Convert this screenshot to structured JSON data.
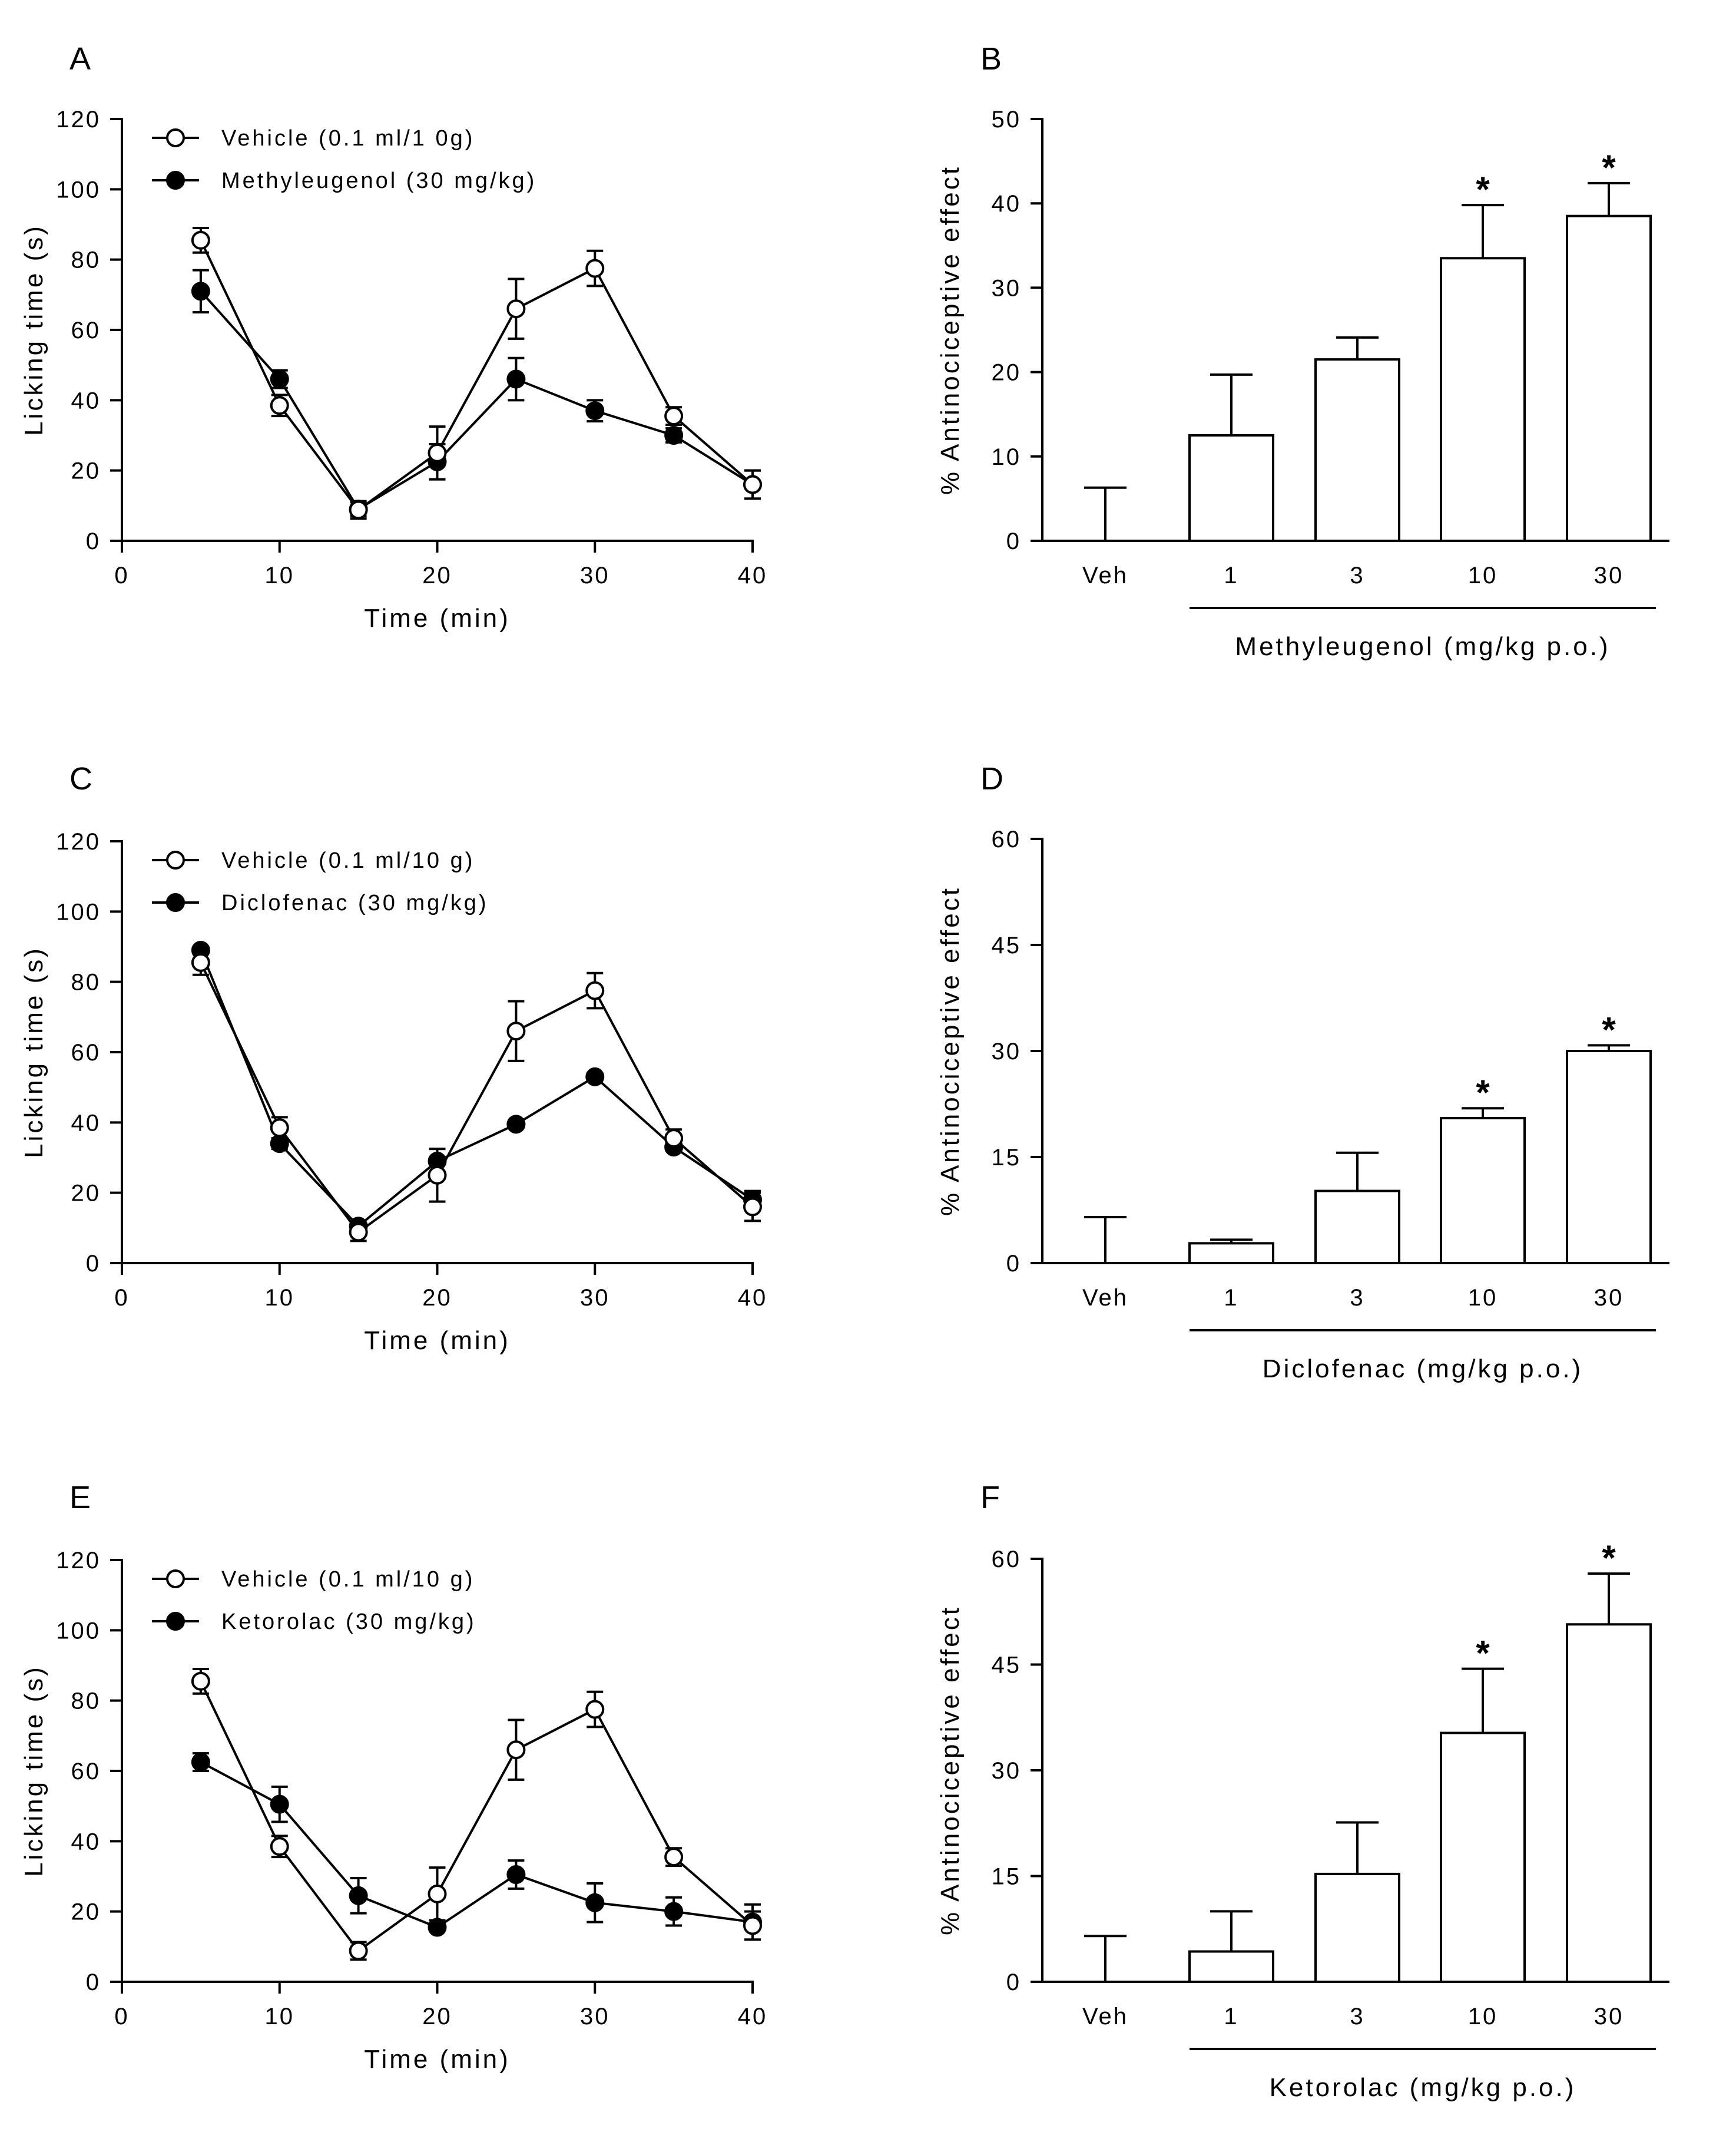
{
  "chart_data": [
    {
      "panel": "A",
      "type": "line",
      "xlabel": "Time  (min)",
      "ylabel": "Licking time (s)",
      "xlim": [
        0,
        40
      ],
      "ylim": [
        0,
        120
      ],
      "xticks": [
        0,
        10,
        20,
        30,
        40
      ],
      "yticks": [
        0,
        20,
        40,
        60,
        80,
        100,
        120
      ],
      "x": [
        5,
        10,
        15,
        20,
        25,
        30,
        35,
        40
      ],
      "series": [
        {
          "name": "Vehicle (0.1 ml/1 0g)",
          "marker": "open-circle",
          "values": [
            85.5,
            38.5,
            8.8,
            25,
            66,
            77.5,
            35.5,
            16
          ],
          "errors": [
            3.5,
            3,
            2.5,
            7.5,
            8.5,
            5,
            2.5,
            4
          ]
        },
        {
          "name": "Methyleugenol (30 mg/kg)",
          "marker": "filled-circle",
          "values": [
            71,
            46,
            9,
            22.5,
            46,
            37,
            30,
            16
          ],
          "errors": [
            6,
            2.5,
            2,
            5,
            6,
            3,
            2,
            4
          ]
        }
      ]
    },
    {
      "panel": "B",
      "type": "bar",
      "ylabel": "% Antinociceptive effect",
      "xlabel": "Methyleugenol (mg/kg p.o.)",
      "ylim": [
        0,
        50
      ],
      "yticks": [
        0,
        10,
        20,
        30,
        40,
        50
      ],
      "categories": [
        "Veh",
        "1",
        "3",
        "10",
        "30"
      ],
      "values": [
        0,
        12.5,
        21.5,
        33.5,
        38.5
      ],
      "errors": [
        6.3,
        7.2,
        2.6,
        6.3,
        3.9
      ],
      "significant": [
        "",
        "",
        "",
        "*",
        "*"
      ]
    },
    {
      "panel": "C",
      "type": "line",
      "xlabel": "Time  (min)",
      "ylabel": "Licking time (s)",
      "xlim": [
        0,
        40
      ],
      "ylim": [
        0,
        120
      ],
      "xticks": [
        0,
        10,
        20,
        30,
        40
      ],
      "yticks": [
        0,
        20,
        40,
        60,
        80,
        100,
        120
      ],
      "x": [
        5,
        10,
        15,
        20,
        25,
        30,
        35,
        40
      ],
      "series": [
        {
          "name": "Vehicle (0.1 ml/10 g)",
          "marker": "open-circle",
          "values": [
            85.5,
            38.5,
            8.8,
            25,
            66,
            77.5,
            35.5,
            16
          ],
          "errors": [
            3.5,
            3,
            2.5,
            7.5,
            8.5,
            5,
            2.5,
            4
          ]
        },
        {
          "name": "Diclofenac (30 mg/kg)",
          "marker": "filled-circle",
          "values": [
            89,
            34,
            10.5,
            29,
            39.5,
            53,
            33,
            18
          ],
          "errors": [
            1,
            1.5,
            1,
            3.5,
            1,
            1,
            1,
            2.5
          ]
        }
      ]
    },
    {
      "panel": "D",
      "type": "bar",
      "ylabel": "% Antinociceptive effect",
      "xlabel": "Diclofenac (mg/kg p.o.)",
      "ylim": [
        0,
        60
      ],
      "yticks": [
        0,
        15,
        30,
        45,
        60
      ],
      "categories": [
        "Veh",
        "1",
        "3",
        "10",
        "30"
      ],
      "values": [
        0,
        2.8,
        10.2,
        20.5,
        30
      ],
      "errors": [
        6.5,
        0.5,
        5.4,
        1.4,
        0.8
      ],
      "significant": [
        "",
        "",
        "",
        "*",
        "*"
      ]
    },
    {
      "panel": "E",
      "type": "line",
      "xlabel": "Time  (min)",
      "ylabel": "Licking time (s)",
      "xlim": [
        0,
        40
      ],
      "ylim": [
        0,
        120
      ],
      "xticks": [
        0,
        10,
        20,
        30,
        40
      ],
      "yticks": [
        0,
        20,
        40,
        60,
        80,
        100,
        120
      ],
      "x": [
        5,
        10,
        15,
        20,
        25,
        30,
        35,
        40
      ],
      "series": [
        {
          "name": "Vehicle (0.1 ml/10 g)",
          "marker": "open-circle",
          "values": [
            85.5,
            38.5,
            8.8,
            25,
            66,
            77.5,
            35.5,
            16
          ],
          "errors": [
            3.5,
            3,
            2.5,
            7.5,
            8.5,
            5,
            2.5,
            4
          ]
        },
        {
          "name": "Ketorolac (30 mg/kg)",
          "marker": "filled-circle",
          "values": [
            62.5,
            50.5,
            24.5,
            15.5,
            30.5,
            22.5,
            20,
            17
          ],
          "errors": [
            2.5,
            5,
            5,
            1,
            4,
            5.5,
            4,
            5
          ]
        }
      ]
    },
    {
      "panel": "F",
      "type": "bar",
      "ylabel": "% Antinociceptive effect",
      "xlabel": "Ketorolac (mg/kg p.o.)",
      "ylim": [
        0,
        60
      ],
      "yticks": [
        0,
        15,
        30,
        45,
        60
      ],
      "categories": [
        "Veh",
        "1",
        "3",
        "10",
        "30"
      ],
      "values": [
        0,
        4.3,
        15.3,
        35.3,
        50.7
      ],
      "errors": [
        6.5,
        5.7,
        7.3,
        9.1,
        7.2
      ],
      "significant": [
        "",
        "",
        "",
        "*",
        "*"
      ]
    }
  ]
}
